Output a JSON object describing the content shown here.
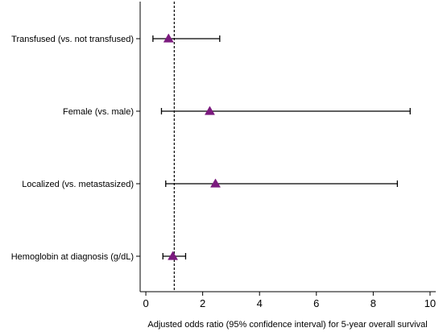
{
  "chart_data": {
    "type": "forest",
    "title": "",
    "xlabel": "Adjusted odds ratio (95% confidence interval) for 5-year overall survival",
    "ylabel": "",
    "xlim": [
      -0.2,
      10.2
    ],
    "xticks": [
      0,
      2,
      4,
      6,
      8,
      10
    ],
    "xtick_labels": [
      "0",
      "2",
      "4",
      "6",
      "8",
      "10"
    ],
    "reference_line": 1,
    "grid": false,
    "marker_color": "#7b1a7e",
    "categories": [
      "Transfused (vs. not transfused)",
      "Female (vs. male)",
      "Localized (vs. metastasized)",
      "Hemoglobin at diagnosis (g/dL)"
    ],
    "estimates": [
      0.8,
      2.25,
      2.45,
      0.95
    ],
    "ci_lower": [
      0.25,
      0.55,
      0.7,
      0.6
    ],
    "ci_upper": [
      2.6,
      9.3,
      8.85,
      1.4
    ]
  }
}
